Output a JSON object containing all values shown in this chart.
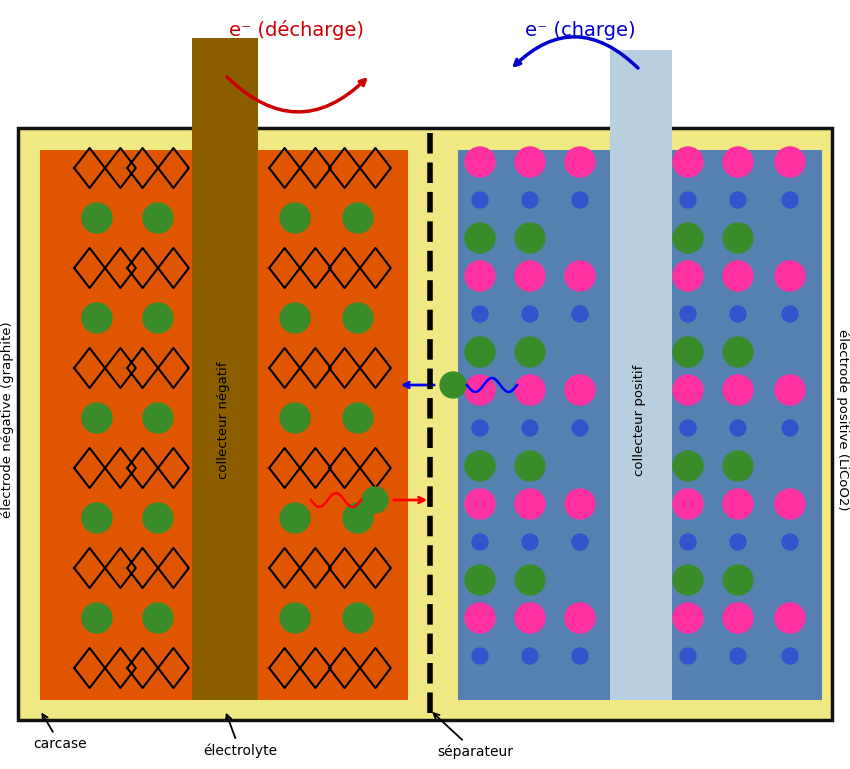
{
  "bg_color": "#f0e882",
  "outer_edge": "#111111",
  "neg_electrode_color": "#e05500",
  "neg_collector_color": "#8B5E00",
  "pos_electrode_color": "#5580b0",
  "pos_collector_color": "#b8cfe0",
  "separator_color": "#111111",
  "li_green": "#3a8c2a",
  "pink": "#ff30a0",
  "blue_dot": "#3355cc",
  "discharge_color": "#cc0000",
  "charge_color": "#0000cc",
  "label_neg_electrode": "électrode négative (graphite)",
  "label_neg_collector": "collecteur négatif",
  "label_pos_electrode": "électrode positive (LiCoO2)",
  "label_pos_collector": "collecteur positif",
  "label_carcase": "carcase",
  "label_electrolyte": "électrolyte",
  "label_separator": "séparateur",
  "label_discharge": "e⁻ (décharge)",
  "label_charge": "e⁻ (charge)"
}
